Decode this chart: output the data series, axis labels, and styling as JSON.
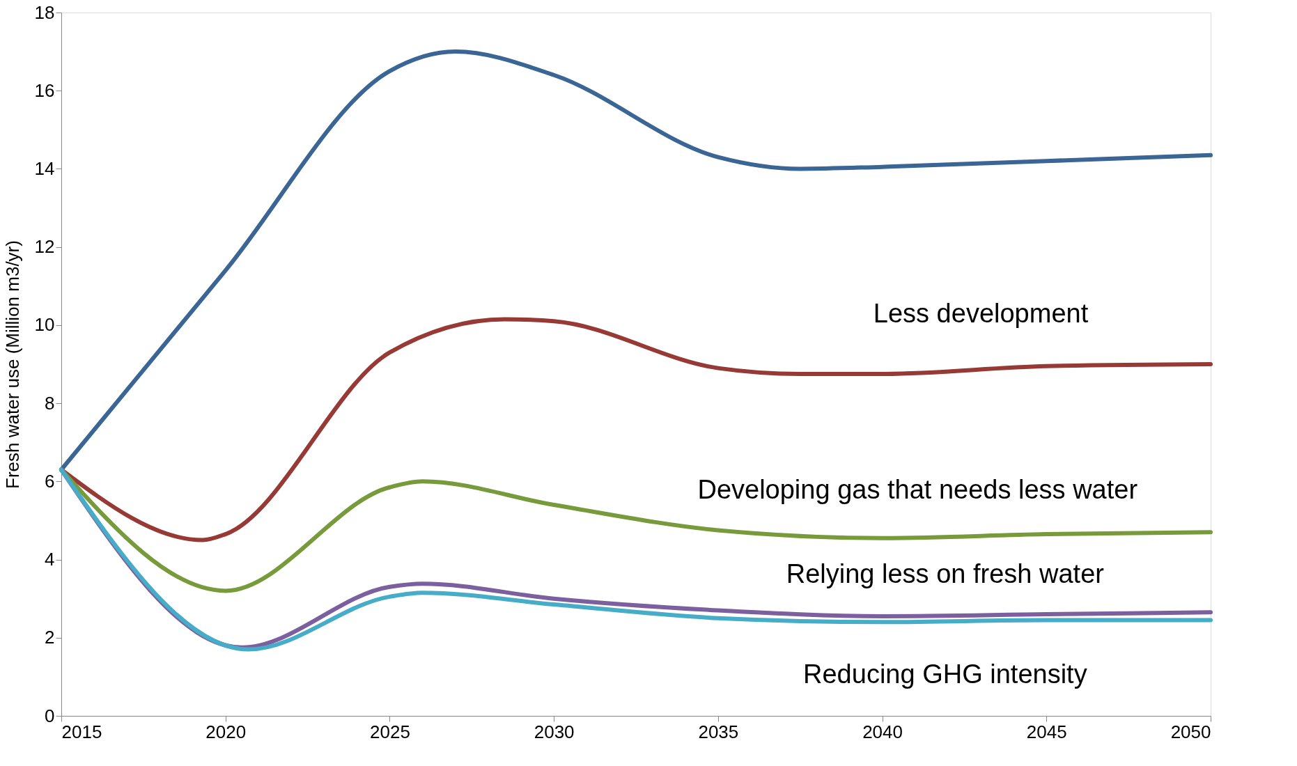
{
  "chart_data": {
    "type": "line",
    "ylabel": "Fresh water use (Million m3/yr)",
    "xlim": [
      2015,
      2050
    ],
    "xticks": [
      2015,
      2020,
      2025,
      2030,
      2035,
      2040,
      2045,
      2050
    ],
    "ylim": [
      0,
      18
    ],
    "yticks": [
      0,
      2,
      4,
      6,
      8,
      10,
      12,
      14,
      16,
      18
    ],
    "grid": false,
    "marker": "none",
    "line_style": "solid",
    "series": [
      {
        "color": "#3a6594",
        "x": [
          2015,
          2020,
          2025,
          2027,
          2030,
          2035,
          2037.5,
          2040,
          2045,
          2050
        ],
        "values": [
          6.3,
          11.4,
          16.5,
          17.0,
          16.4,
          14.3,
          14.0,
          14.05,
          14.2,
          14.35
        ]
      },
      {
        "color": "#973a36",
        "x": [
          2015,
          2019.3,
          2020,
          2025,
          2028.5,
          2030,
          2035,
          2037.5,
          2040,
          2045,
          2050
        ],
        "values": [
          6.3,
          4.5,
          4.65,
          9.3,
          10.15,
          10.1,
          8.9,
          8.75,
          8.75,
          8.95,
          9.0
        ]
      },
      {
        "color": "#779a3b",
        "x": [
          2015,
          2020,
          2025,
          2026,
          2030,
          2035,
          2040,
          2045,
          2050
        ],
        "values": [
          6.3,
          3.2,
          5.85,
          6.0,
          5.4,
          4.75,
          4.55,
          4.65,
          4.7
        ]
      },
      {
        "color": "#7b5f9e",
        "x": [
          2015,
          2020.5,
          2025,
          2026,
          2030,
          2035,
          2040,
          2045,
          2050
        ],
        "values": [
          6.3,
          1.75,
          3.3,
          3.38,
          3.0,
          2.7,
          2.55,
          2.6,
          2.65
        ]
      },
      {
        "color": "#46acc8",
        "x": [
          2015,
          2020.7,
          2025,
          2026,
          2030,
          2035,
          2040,
          2045,
          2050
        ],
        "values": [
          6.3,
          1.7,
          3.05,
          3.15,
          2.85,
          2.5,
          2.4,
          2.45,
          2.45
        ]
      }
    ],
    "annotations": [
      "Less development",
      "Developing gas that needs less water",
      "Relying less on fresh water",
      "Reducing GHG intensity"
    ]
  }
}
